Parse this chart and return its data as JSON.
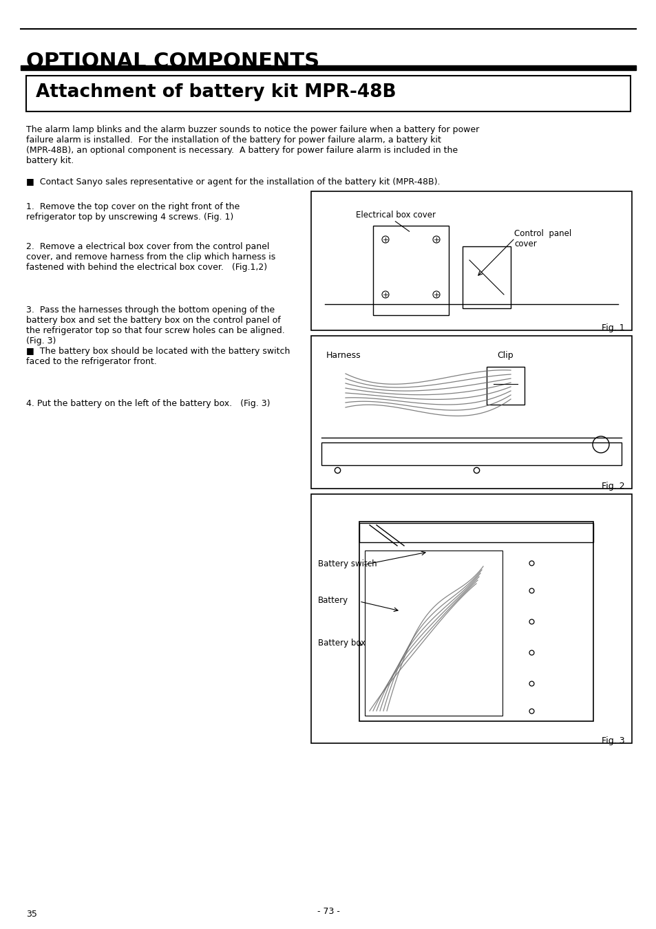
{
  "page_title": "OPTIONAL COMPONENTS",
  "section_title": "Attachment of battery kit MPR-48B",
  "body_text_1": "The alarm lamp blinks and the alarm buzzer sounds to notice the power failure when a battery for power\nfailure alarm is installed.  For the installation of the battery for power failure alarm, a battery kit\n(MPR-48B), an optional component is necessary.  A battery for power failure alarm is included in the\nbattery kit.",
  "bullet_text": "■  Contact Sanyo sales representative or agent for the installation of the battery kit (MPR-48B).",
  "step1_text": "1.  Remove the top cover on the right front of the\nrefrigerator top by unscrewing 4 screws. (Fig. 1)",
  "step2_text": "2.  Remove a electrical box cover from the control panel\ncover, and remove harness from the clip which harness is\nfastened with behind the electrical box cover.   (Fig.1,2)",
  "step3_text": "3.  Pass the harnesses through the bottom opening of the\nbattery box and set the battery box on the control panel of\nthe refrigerator top so that four screw holes can be aligned.\n(Fig. 3)\n■  The battery box should be located with the battery switch\nfaced to the refrigerator front.",
  "step4_text": "4. Put the battery on the left of the battery box.   (Fig. 3)",
  "fig1_label": "Fig. 1",
  "fig2_label": "Fig. 2",
  "fig3_label": "Fig. 3",
  "fig1_annotations": [
    "Electrical box cover",
    "Control  panel\ncover"
  ],
  "fig2_annotations": [
    "Harness",
    "Clip"
  ],
  "fig3_annotations": [
    "Battery switch",
    "Battery",
    "Battery box"
  ],
  "page_number_left": "35",
  "page_number_center": "- 73 -",
  "bg_color": "#ffffff",
  "text_color": "#000000"
}
